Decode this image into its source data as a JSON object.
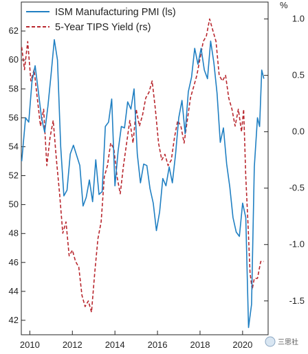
{
  "chart_data": {
    "type": "line",
    "title": "",
    "xlabel": "",
    "x_ticks": [
      "2010",
      "2012",
      "2014",
      "2016",
      "2018",
      "2020"
    ],
    "xlim": [
      2009.6,
      2021.2
    ],
    "left_axis": {
      "ylim": [
        41,
        64
      ],
      "ticks": [
        "62",
        "60",
        "58",
        "56",
        "54",
        "52",
        "50",
        "48",
        "46",
        "44",
        "42"
      ]
    },
    "right_axis": {
      "unit_label": "%",
      "ylim": [
        -1.8,
        1.15
      ],
      "ticks": [
        "1.0",
        "0.5",
        "0.0",
        "-0.5",
        "-1.0",
        "-1.5"
      ]
    },
    "grid": false,
    "legend_position": "top-left",
    "series": [
      {
        "name": "ISM Manufacturing PMI (ls)",
        "axis": "left",
        "color": "#1f7fc2",
        "style": "solid",
        "points": [
          [
            2009.62,
            53
          ],
          [
            2009.8,
            56
          ],
          [
            2009.95,
            55.7
          ],
          [
            2010.1,
            58.5
          ],
          [
            2010.25,
            59.6
          ],
          [
            2010.4,
            57.8
          ],
          [
            2010.55,
            56
          ],
          [
            2010.7,
            55
          ],
          [
            2010.85,
            56.8
          ],
          [
            2011.0,
            59
          ],
          [
            2011.15,
            61.4
          ],
          [
            2011.3,
            60
          ],
          [
            2011.45,
            54
          ],
          [
            2011.6,
            50.6
          ],
          [
            2011.75,
            51
          ],
          [
            2011.9,
            53.5
          ],
          [
            2012.05,
            54.1
          ],
          [
            2012.2,
            53.4
          ],
          [
            2012.35,
            52.7
          ],
          [
            2012.5,
            49.9
          ],
          [
            2012.65,
            50.5
          ],
          [
            2012.8,
            51.7
          ],
          [
            2012.95,
            50.2
          ],
          [
            2013.1,
            53.1
          ],
          [
            2013.25,
            50.7
          ],
          [
            2013.4,
            50.9
          ],
          [
            2013.55,
            55.4
          ],
          [
            2013.7,
            55.7
          ],
          [
            2013.85,
            57.3
          ],
          [
            2014.0,
            51.3
          ],
          [
            2014.15,
            53.7
          ],
          [
            2014.3,
            55.4
          ],
          [
            2014.45,
            55.3
          ],
          [
            2014.6,
            57.1
          ],
          [
            2014.75,
            56.6
          ],
          [
            2014.9,
            58
          ],
          [
            2015.05,
            53.5
          ],
          [
            2015.2,
            51.5
          ],
          [
            2015.35,
            52.8
          ],
          [
            2015.5,
            52.7
          ],
          [
            2015.65,
            51.1
          ],
          [
            2015.8,
            50.1
          ],
          [
            2015.95,
            48.2
          ],
          [
            2016.1,
            49.5
          ],
          [
            2016.25,
            51.8
          ],
          [
            2016.4,
            51.3
          ],
          [
            2016.55,
            52.6
          ],
          [
            2016.7,
            51.5
          ],
          [
            2016.85,
            53.5
          ],
          [
            2017.0,
            56
          ],
          [
            2017.15,
            57.2
          ],
          [
            2017.3,
            54.9
          ],
          [
            2017.45,
            57.8
          ],
          [
            2017.6,
            58.8
          ],
          [
            2017.75,
            60.8
          ],
          [
            2017.9,
            59.7
          ],
          [
            2018.05,
            60.8
          ],
          [
            2018.2,
            59.3
          ],
          [
            2018.35,
            58.7
          ],
          [
            2018.5,
            61.3
          ],
          [
            2018.65,
            59.8
          ],
          [
            2018.8,
            57.7
          ],
          [
            2018.95,
            54.3
          ],
          [
            2019.1,
            55.3
          ],
          [
            2019.25,
            52.8
          ],
          [
            2019.4,
            51.2
          ],
          [
            2019.55,
            49.1
          ],
          [
            2019.7,
            48.1
          ],
          [
            2019.85,
            47.8
          ],
          [
            2020.0,
            50.1
          ],
          [
            2020.15,
            49.1
          ],
          [
            2020.28,
            41.5
          ],
          [
            2020.42,
            43.1
          ],
          [
            2020.55,
            52.6
          ],
          [
            2020.7,
            56
          ],
          [
            2020.8,
            55.4
          ],
          [
            2020.9,
            59.3
          ],
          [
            2021.0,
            58.7
          ]
        ]
      },
      {
        "name": "5-Year TIPS Yield (rs)",
        "axis": "right",
        "color": "#b8262d",
        "style": "dashed",
        "points": [
          [
            2009.62,
            0.75
          ],
          [
            2009.75,
            0.55
          ],
          [
            2009.9,
            0.8
          ],
          [
            2010.05,
            0.45
          ],
          [
            2010.2,
            0.55
          ],
          [
            2010.35,
            0.3
          ],
          [
            2010.5,
            0.05
          ],
          [
            2010.65,
            0.2
          ],
          [
            2010.8,
            -0.3
          ],
          [
            2010.95,
            -0.05
          ],
          [
            2011.1,
            0.1
          ],
          [
            2011.25,
            -0.25
          ],
          [
            2011.4,
            -0.55
          ],
          [
            2011.55,
            -0.9
          ],
          [
            2011.7,
            -0.8
          ],
          [
            2011.85,
            -1.1
          ],
          [
            2012.0,
            -1.05
          ],
          [
            2012.15,
            -1.15
          ],
          [
            2012.3,
            -1.2
          ],
          [
            2012.45,
            -1.45
          ],
          [
            2012.6,
            -1.55
          ],
          [
            2012.75,
            -1.5
          ],
          [
            2012.9,
            -1.6
          ],
          [
            2013.05,
            -1.25
          ],
          [
            2013.2,
            -0.95
          ],
          [
            2013.35,
            -0.8
          ],
          [
            2013.5,
            -0.4
          ],
          [
            2013.65,
            -0.3
          ],
          [
            2013.8,
            -0.1
          ],
          [
            2013.95,
            -0.15
          ],
          [
            2014.1,
            -0.4
          ],
          [
            2014.25,
            -0.55
          ],
          [
            2014.4,
            -0.3
          ],
          [
            2014.55,
            -0.1
          ],
          [
            2014.7,
            0.1
          ],
          [
            2014.85,
            -0.1
          ],
          [
            2015.0,
            0.2
          ],
          [
            2015.15,
            0.05
          ],
          [
            2015.3,
            0.15
          ],
          [
            2015.45,
            0.3
          ],
          [
            2015.6,
            0.35
          ],
          [
            2015.75,
            0.45
          ],
          [
            2015.9,
            0.2
          ],
          [
            2016.05,
            -0.1
          ],
          [
            2016.2,
            -0.25
          ],
          [
            2016.35,
            -0.2
          ],
          [
            2016.5,
            -0.3
          ],
          [
            2016.65,
            -0.25
          ],
          [
            2016.8,
            -0.05
          ],
          [
            2016.95,
            0.1
          ],
          [
            2017.1,
            0.05
          ],
          [
            2017.25,
            -0.1
          ],
          [
            2017.4,
            0.1
          ],
          [
            2017.55,
            0.3
          ],
          [
            2017.7,
            0.4
          ],
          [
            2017.85,
            0.5
          ],
          [
            2018.0,
            0.65
          ],
          [
            2018.15,
            0.8
          ],
          [
            2018.3,
            0.85
          ],
          [
            2018.45,
            1.0
          ],
          [
            2018.6,
            0.9
          ],
          [
            2018.75,
            0.8
          ],
          [
            2018.9,
            0.5
          ],
          [
            2019.05,
            0.45
          ],
          [
            2019.2,
            0.5
          ],
          [
            2019.35,
            0.3
          ],
          [
            2019.5,
            0.2
          ],
          [
            2019.65,
            0.05
          ],
          [
            2019.8,
            0.2
          ],
          [
            2019.95,
            0.0
          ],
          [
            2020.05,
            0.2
          ],
          [
            2020.15,
            -0.4
          ],
          [
            2020.25,
            -0.8
          ],
          [
            2020.35,
            -1.25
          ],
          [
            2020.45,
            -1.4
          ],
          [
            2020.55,
            -1.3
          ],
          [
            2020.7,
            -1.3
          ],
          [
            2020.85,
            -1.15
          ],
          [
            2021.0,
            -1.15
          ]
        ]
      }
    ]
  },
  "watermark": "三思社"
}
